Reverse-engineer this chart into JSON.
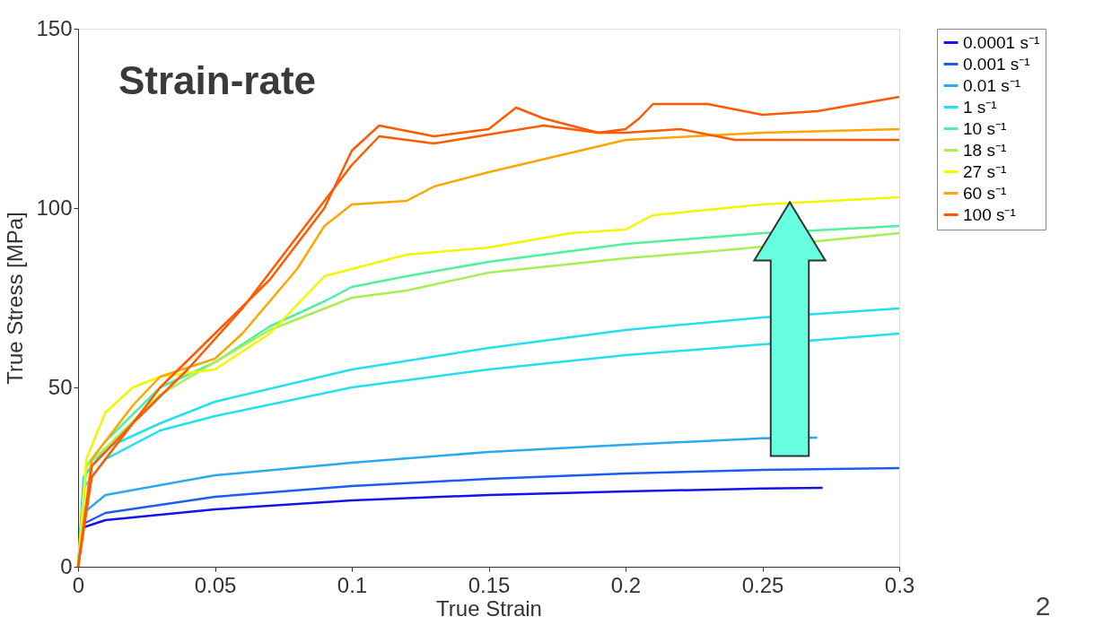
{
  "chart_data": {
    "type": "line",
    "title": "Strain-rate",
    "xlabel": "True Strain",
    "ylabel": "True Stress [MPa]",
    "xlim": [
      0,
      0.3
    ],
    "ylim": [
      0,
      150
    ],
    "xticks": [
      0,
      0.05,
      0.1,
      0.15,
      0.2,
      0.25,
      0.3
    ],
    "yticks": [
      0,
      50,
      100,
      150
    ],
    "grid": false,
    "legend": "top right",
    "annotations": [
      "2"
    ],
    "series": [
      {
        "name": "0.0001 s⁻¹",
        "color": "#1414e6",
        "x": [
          0,
          0.002,
          0.01,
          0.05,
          0.1,
          0.15,
          0.2,
          0.25,
          0.272
        ],
        "values": [
          0,
          11,
          13,
          16,
          18.5,
          20,
          21,
          21.8,
          22
        ]
      },
      {
        "name": "0.001 s⁻¹",
        "color": "#1e5cf0",
        "x": [
          0,
          0.002,
          0.01,
          0.05,
          0.1,
          0.15,
          0.2,
          0.25,
          0.3
        ],
        "values": [
          0,
          12,
          15,
          19.5,
          22.5,
          24.5,
          26,
          27,
          27.5
        ]
      },
      {
        "name": "0.01 s⁻¹",
        "color": "#2aa8f0",
        "x": [
          0,
          0.002,
          0.01,
          0.05,
          0.1,
          0.15,
          0.2,
          0.25,
          0.27
        ],
        "values": [
          0,
          15,
          20,
          25.5,
          29,
          32,
          34,
          35.8,
          36
        ]
      },
      {
        "name": "1 s⁻¹",
        "color": "#22e0f0",
        "x": [
          0,
          0.002,
          0.01,
          0.03,
          0.05,
          0.1,
          0.15,
          0.2,
          0.25,
          0.3
        ],
        "values": [
          0,
          25,
          33,
          40,
          46,
          55,
          61,
          66,
          69.5,
          72
        ]
      },
      {
        "color": "#22e0f0",
        "x": [
          0,
          0.002,
          0.01,
          0.03,
          0.05,
          0.1,
          0.15,
          0.2,
          0.25,
          0.3
        ],
        "values": [
          0,
          22,
          30,
          38,
          42,
          50,
          55,
          59,
          62,
          65
        ]
      },
      {
        "name": "10 s⁻¹",
        "color": "#50f0a0",
        "x": [
          0,
          0.003,
          0.01,
          0.03,
          0.05,
          0.07,
          0.09,
          0.1,
          0.12,
          0.15,
          0.2,
          0.25,
          0.3
        ],
        "values": [
          0,
          28,
          35,
          50,
          57,
          67,
          74,
          78,
          81,
          85,
          90,
          93,
          95
        ]
      },
      {
        "name": "18 s⁻¹",
        "color": "#a8f050",
        "x": [
          0,
          0.003,
          0.01,
          0.03,
          0.05,
          0.07,
          0.1,
          0.12,
          0.15,
          0.2,
          0.24,
          0.3
        ],
        "values": [
          0,
          28,
          33,
          48,
          57,
          66,
          75,
          77,
          82,
          86,
          88.5,
          93
        ]
      },
      {
        "name": "27 s⁻¹",
        "color": "#f5f500",
        "x": [
          0,
          0.003,
          0.01,
          0.02,
          0.03,
          0.05,
          0.07,
          0.09,
          0.1,
          0.12,
          0.15,
          0.18,
          0.2,
          0.21,
          0.25,
          0.3
        ],
        "values": [
          0,
          30,
          43,
          50,
          53,
          55,
          65,
          81,
          83,
          87,
          89,
          93,
          94,
          98,
          101,
          103
        ]
      },
      {
        "name": "60 s⁻¹",
        "color": "#ffa500",
        "x": [
          0,
          0.005,
          0.02,
          0.03,
          0.05,
          0.06,
          0.08,
          0.09,
          0.1,
          0.12,
          0.13,
          0.15,
          0.2,
          0.25,
          0.3
        ],
        "values": [
          0,
          30,
          45,
          53,
          58,
          65,
          83,
          95,
          101,
          102,
          106,
          110,
          119,
          121,
          122
        ]
      },
      {
        "name": "100 s⁻¹",
        "color": "#ff5a00",
        "x": [
          0,
          0.005,
          0.02,
          0.03,
          0.05,
          0.07,
          0.09,
          0.1,
          0.11,
          0.13,
          0.15,
          0.16,
          0.17,
          0.19,
          0.2,
          0.22,
          0.24,
          0.3
        ],
        "values": [
          0,
          25,
          40,
          50,
          65,
          80,
          100,
          116,
          123,
          120,
          122,
          128,
          125,
          121,
          121,
          122,
          119,
          119
        ]
      },
      {
        "color": "#ff5a00",
        "x": [
          0,
          0.005,
          0.02,
          0.04,
          0.06,
          0.08,
          0.1,
          0.11,
          0.13,
          0.17,
          0.19,
          0.2,
          0.205,
          0.21,
          0.23,
          0.25,
          0.27,
          0.3
        ],
        "values": [
          0,
          28,
          40,
          55,
          72,
          92,
          112,
          120,
          118,
          123,
          121,
          122,
          125,
          129,
          129,
          126,
          127,
          131
        ]
      }
    ]
  }
}
